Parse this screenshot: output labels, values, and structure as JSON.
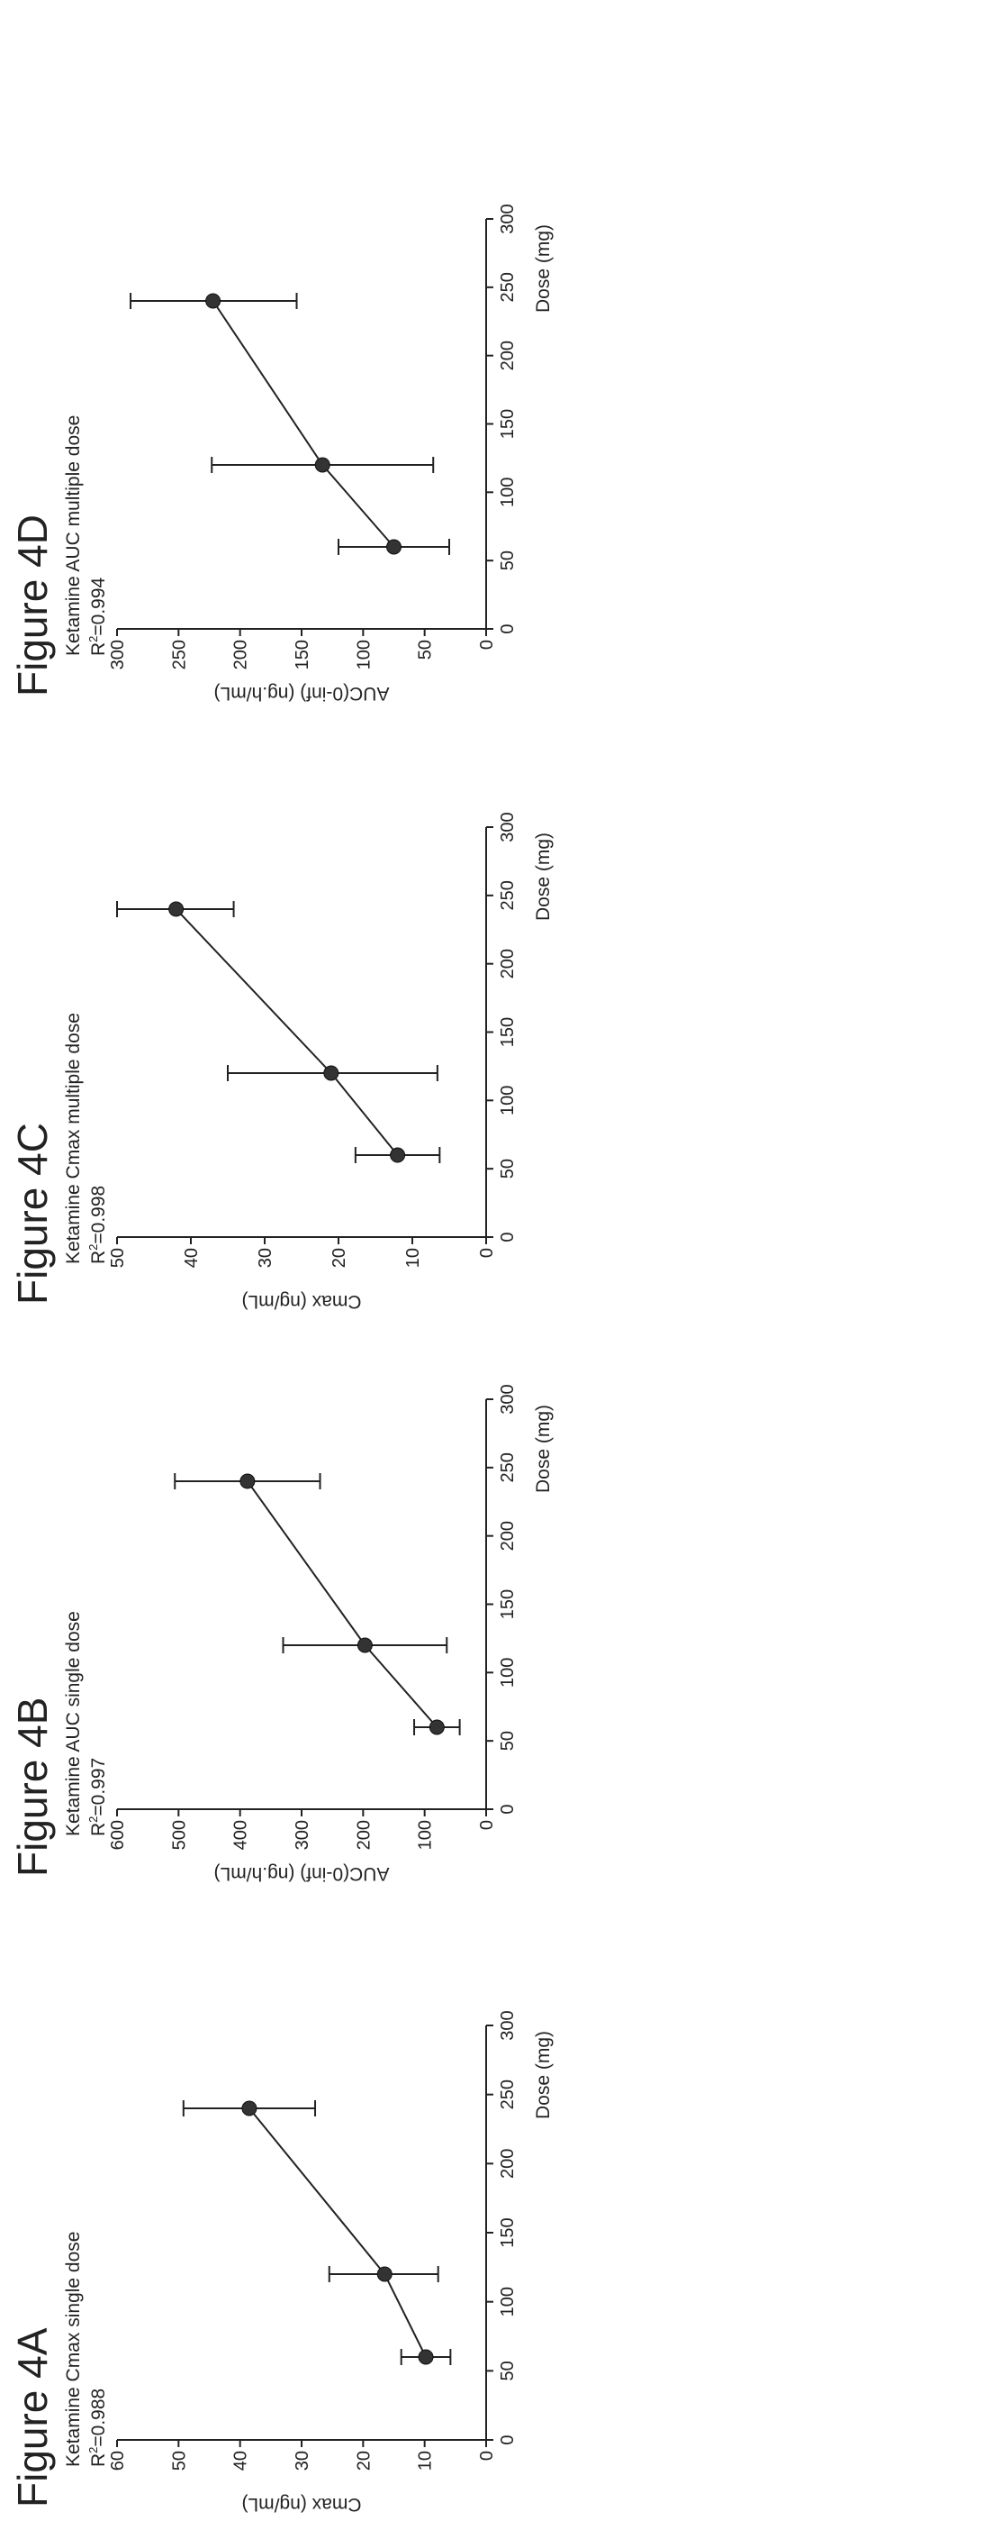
{
  "chart_data": [
    {
      "type": "scatter",
      "figure_label": "Figure 4A",
      "title": "Ketamine Cmax single dose",
      "r2_prefix": "R",
      "r2_sup": "2",
      "r2_value": "=0.988",
      "xlabel": "Dose (mg)",
      "ylabel": "Cmax (ng/mL)",
      "xlim": [
        0,
        300
      ],
      "ylim": [
        0,
        60
      ],
      "xticks": [
        0,
        50,
        100,
        150,
        200,
        250,
        300
      ],
      "yticks": [
        0,
        10,
        20,
        30,
        40,
        50,
        60
      ],
      "x": [
        60,
        120,
        240
      ],
      "y": [
        9.8,
        16.5,
        38.5
      ],
      "err_low": [
        5.8,
        7.8,
        27.8
      ],
      "err_high": [
        13.8,
        25.5,
        49.2
      ],
      "trendline": true
    },
    {
      "type": "scatter",
      "figure_label": "Figure 4B",
      "title": "Ketamine AUC single dose",
      "r2_prefix": "R",
      "r2_sup": "2",
      "r2_value": "=0.997",
      "xlabel": "Dose (mg)",
      "ylabel": "AUC(0-inf) (ng.h/mL)",
      "xlim": [
        0,
        300
      ],
      "ylim": [
        0,
        600
      ],
      "xticks": [
        0,
        50,
        100,
        150,
        200,
        250,
        300
      ],
      "yticks": [
        0,
        100,
        200,
        300,
        400,
        500,
        600
      ],
      "x": [
        60,
        120,
        240
      ],
      "y": [
        80,
        197,
        388
      ],
      "err_low": [
        43,
        64,
        270
      ],
      "err_high": [
        117,
        330,
        506
      ],
      "trendline": true
    },
    {
      "type": "scatter",
      "figure_label": "Figure 4C",
      "title": "Ketamine Cmax multiple dose",
      "r2_prefix": "R",
      "r2_sup": "2",
      "r2_value": "=0.998",
      "xlabel": "Dose (mg)",
      "ylabel": "Cmax (ng/mL)",
      "xlim": [
        0,
        300
      ],
      "ylim": [
        0,
        50
      ],
      "xticks": [
        0,
        50,
        100,
        150,
        200,
        250,
        300
      ],
      "yticks": [
        0,
        10,
        20,
        30,
        40,
        50
      ],
      "x": [
        60,
        120,
        240
      ],
      "y": [
        12,
        21,
        42
      ],
      "err_low": [
        6.3,
        6.6,
        34.2
      ],
      "err_high": [
        17.7,
        35,
        50
      ],
      "trendline": true
    },
    {
      "type": "scatter",
      "figure_label": "Figure 4D",
      "title": "Ketamine AUC multiple dose",
      "r2_prefix": "R",
      "r2_sup": "2",
      "r2_value": "=0.994",
      "xlabel": "Dose (mg)",
      "ylabel": "AUC(0-inf) (ng.h/mL)",
      "xlim": [
        0,
        300
      ],
      "ylim": [
        0,
        300
      ],
      "xticks": [
        0,
        50,
        100,
        150,
        200,
        250,
        300
      ],
      "yticks": [
        0,
        50,
        100,
        150,
        200,
        250,
        300
      ],
      "x": [
        60,
        120,
        240
      ],
      "y": [
        75,
        133,
        222
      ],
      "err_low": [
        30,
        43,
        154
      ],
      "err_high": [
        120,
        223,
        289
      ],
      "trendline": true
    }
  ]
}
